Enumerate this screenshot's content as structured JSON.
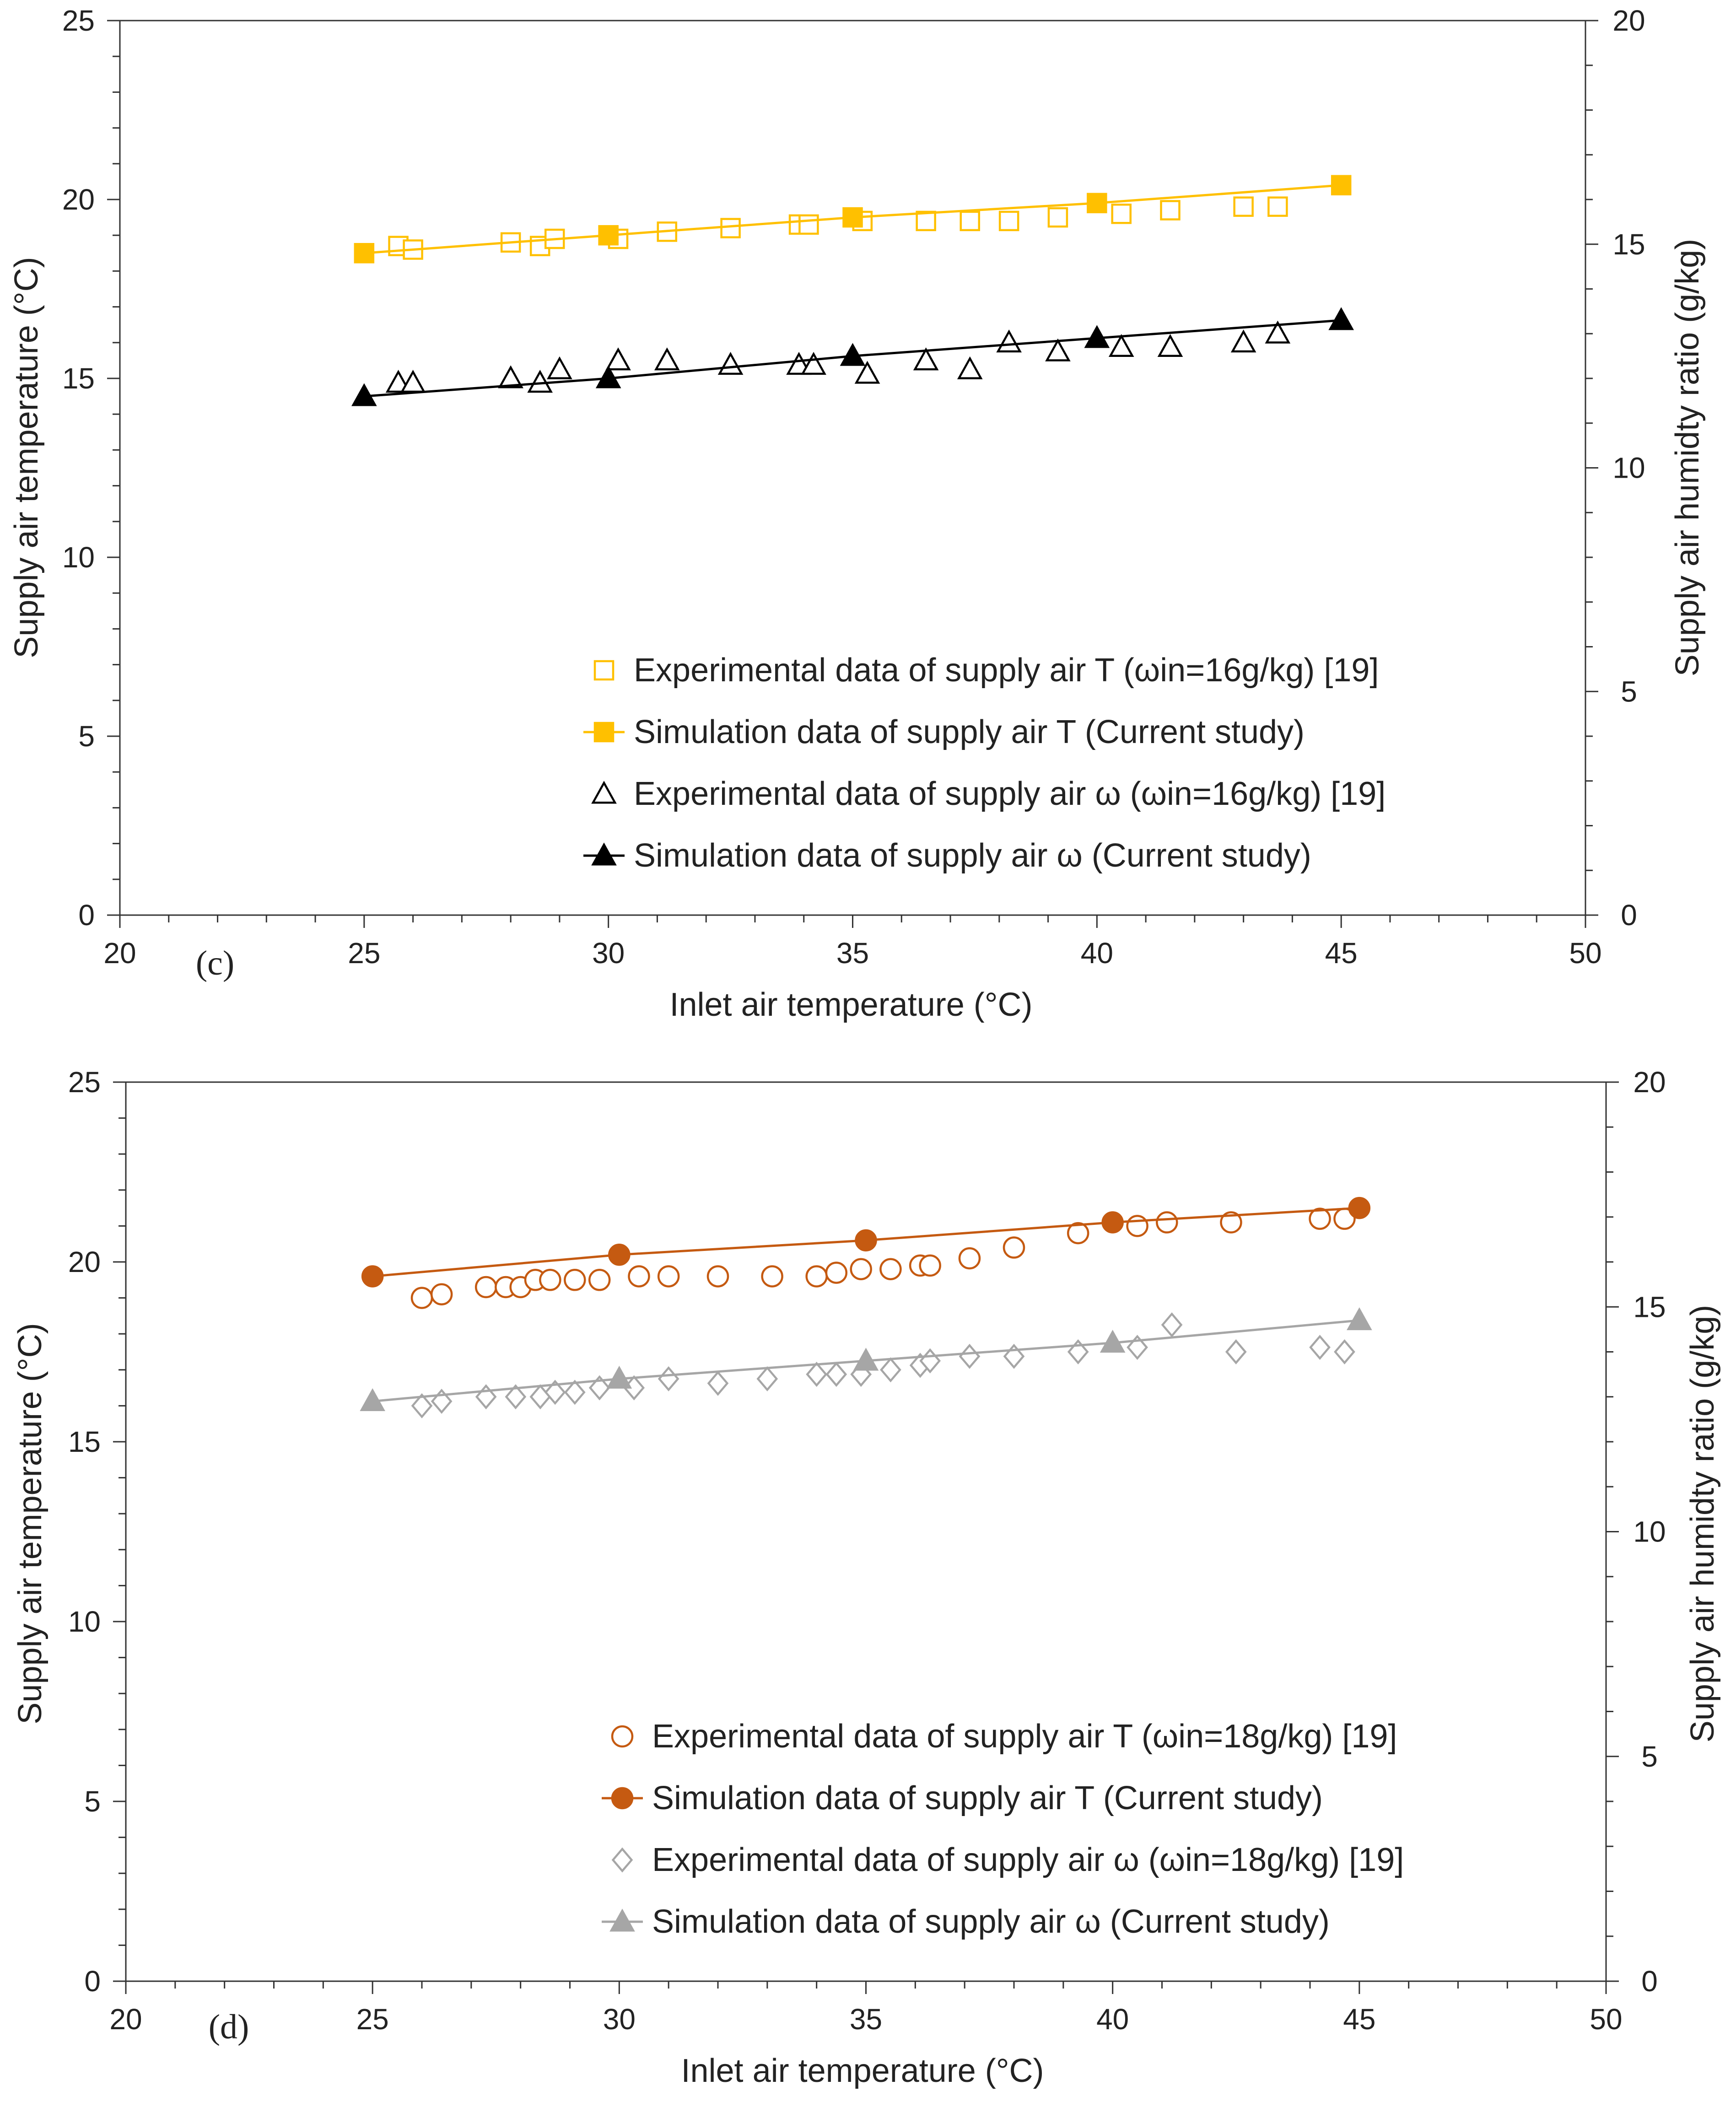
{
  "chart_data": [
    {
      "type": "scatter",
      "panel_label": "(c)",
      "xlabel": "Inlet air temperature (°C)",
      "ylabel": "Supply air temperature (°C)",
      "y2label": "Supply air humidty ratio (g/kg)",
      "xlim": [
        20,
        50
      ],
      "ylim": [
        0,
        25
      ],
      "y2lim": [
        0,
        20
      ],
      "xticks": [
        "20",
        "25",
        "30",
        "35",
        "40",
        "45",
        "50"
      ],
      "yticks": [
        "0",
        "5",
        "10",
        "15",
        "20",
        "25"
      ],
      "y2ticks": [
        "0",
        "5",
        "10",
        "15",
        "20"
      ],
      "legend_position": "bottom-right",
      "series": [
        {
          "name": "Experimental data of supply air T (ωin=16g/kg) [19]",
          "axis": "left",
          "marker": "square-open",
          "color": "#FFC000",
          "line": false,
          "x": [
            25.7,
            26.0,
            28.0,
            28.6,
            28.9,
            30.2,
            31.2,
            32.5,
            33.9,
            34.1,
            35.2,
            36.5,
            37.4,
            38.2,
            39.2,
            40.5,
            41.5,
            43.0,
            43.7
          ],
          "y": [
            18.7,
            18.6,
            18.8,
            18.7,
            18.9,
            18.9,
            19.1,
            19.2,
            19.3,
            19.3,
            19.4,
            19.4,
            19.4,
            19.4,
            19.5,
            19.6,
            19.7,
            19.8,
            19.8
          ]
        },
        {
          "name": "Simulation data of supply air T (Current study)",
          "axis": "left",
          "marker": "square-filled",
          "color": "#FFC000",
          "line": true,
          "x": [
            25,
            30,
            35,
            40,
            45
          ],
          "y": [
            18.5,
            19.0,
            19.5,
            19.9,
            20.4
          ]
        },
        {
          "name": "Experimental data of supply air ω (ωin=16g/kg) [19]",
          "axis": "right",
          "marker": "triangle-open",
          "color": "#000000",
          "line": false,
          "x": [
            25.7,
            26.0,
            28.0,
            28.6,
            29.0,
            30.2,
            31.2,
            32.5,
            33.9,
            34.2,
            35.3,
            36.5,
            37.4,
            38.2,
            39.2,
            40.5,
            41.5,
            43.0,
            43.7
          ],
          "y": [
            11.9,
            11.9,
            12.0,
            11.9,
            12.2,
            12.4,
            12.4,
            12.3,
            12.3,
            12.3,
            12.1,
            12.4,
            12.2,
            12.8,
            12.6,
            12.7,
            12.7,
            12.8,
            13.0
          ]
        },
        {
          "name": "Simulation data of supply air ω (Current study)",
          "axis": "right",
          "marker": "triangle-filled",
          "color": "#000000",
          "line": true,
          "x": [
            25,
            30,
            35,
            40,
            45
          ],
          "y": [
            11.6,
            12.0,
            12.5,
            12.9,
            13.3
          ]
        }
      ]
    },
    {
      "type": "scatter",
      "panel_label": "(d)",
      "xlabel": "Inlet air temperature (°C)",
      "ylabel": "Supply air temperature (°C)",
      "y2label": "Supply air humidty ratio (g/kg)",
      "xlim": [
        20,
        50
      ],
      "ylim": [
        0,
        25
      ],
      "y2lim": [
        0,
        20
      ],
      "xticks": [
        "20",
        "25",
        "30",
        "35",
        "40",
        "45",
        "50"
      ],
      "yticks": [
        "0",
        "5",
        "10",
        "15",
        "20",
        "25"
      ],
      "y2ticks": [
        "0",
        "5",
        "10",
        "15",
        "20"
      ],
      "legend_position": "bottom-right",
      "series": [
        {
          "name": "Experimental data of supply air T (ωin=18g/kg) [19]",
          "axis": "left",
          "marker": "circle-open",
          "color": "#C55A11",
          "line": false,
          "x": [
            26.0,
            26.4,
            27.3,
            27.7,
            28.0,
            28.3,
            28.6,
            29.1,
            29.6,
            30.4,
            31.0,
            32.0,
            33.1,
            34.0,
            34.4,
            34.9,
            35.5,
            36.1,
            36.3,
            37.1,
            38.0,
            39.3,
            40.5,
            41.1,
            42.4,
            44.2,
            44.7
          ],
          "y": [
            19.0,
            19.1,
            19.3,
            19.3,
            19.3,
            19.5,
            19.5,
            19.5,
            19.5,
            19.6,
            19.6,
            19.6,
            19.6,
            19.6,
            19.7,
            19.8,
            19.8,
            19.9,
            19.9,
            20.1,
            20.4,
            20.8,
            21.0,
            21.1,
            21.1,
            21.2,
            21.2
          ]
        },
        {
          "name": "Simulation data of supply air T (Current study)",
          "axis": "left",
          "marker": "circle-filled",
          "color": "#C55A11",
          "line": true,
          "x": [
            25,
            30,
            35,
            40,
            45
          ],
          "y": [
            19.6,
            20.2,
            20.6,
            21.1,
            21.5
          ]
        },
        {
          "name": "Experimental data of supply air ω (ωin=18g/kg) [19]",
          "axis": "right",
          "marker": "diamond-open",
          "color": "#A6A6A6",
          "line": false,
          "x": [
            26.0,
            26.4,
            27.3,
            27.9,
            28.4,
            28.7,
            29.1,
            29.6,
            30.3,
            31.0,
            32.0,
            33.0,
            34.0,
            34.4,
            34.9,
            35.5,
            36.1,
            36.3,
            37.1,
            38.0,
            39.3,
            40.5,
            41.2,
            42.5,
            44.2,
            44.7
          ],
          "y": [
            12.8,
            12.9,
            13.0,
            13.0,
            13.0,
            13.1,
            13.1,
            13.2,
            13.2,
            13.4,
            13.3,
            13.4,
            13.5,
            13.5,
            13.5,
            13.6,
            13.7,
            13.8,
            13.9,
            13.9,
            14.0,
            14.1,
            14.6,
            14.0,
            14.1,
            14.0
          ]
        },
        {
          "name": "Simulation data of supply air ω (Current study)",
          "axis": "right",
          "marker": "triangle-filled",
          "color": "#A6A6A6",
          "line": true,
          "x": [
            25,
            30,
            35,
            40,
            45
          ],
          "y": [
            12.9,
            13.4,
            13.8,
            14.2,
            14.7
          ]
        }
      ]
    }
  ]
}
